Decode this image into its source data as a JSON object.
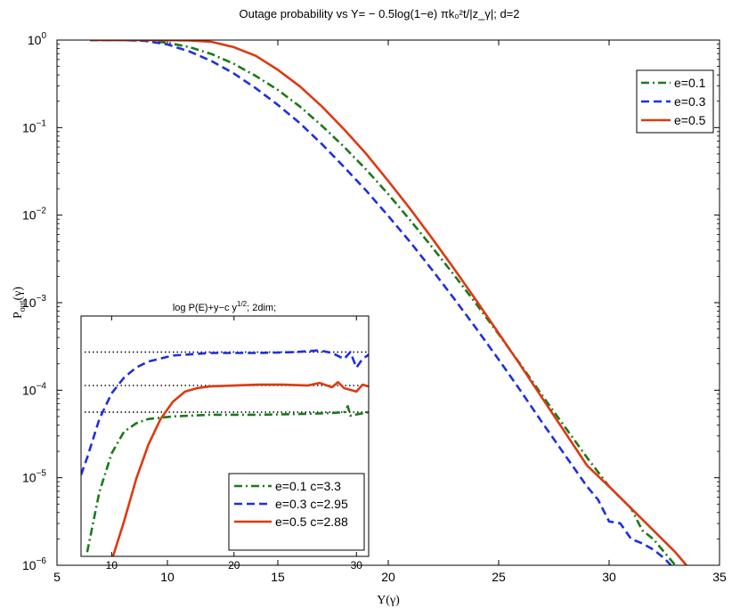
{
  "chart_data": [
    {
      "type": "line",
      "title": "Outage probability vs Y= − 0.5log(1−e) πk₀²t/|z_γ|; d=2",
      "xlabel": "Y(γ)",
      "ylabel": "P_out(γ)",
      "xlim": [
        5,
        35
      ],
      "ylim_log10": [
        -6,
        0
      ],
      "yscale": "log",
      "grid": false,
      "legend_position": "top-right",
      "x_ticks": [
        "5",
        "10",
        "15",
        "20",
        "25",
        "30",
        "35"
      ],
      "y_ticks": [
        {
          "base": "10",
          "exp": "0"
        },
        {
          "base": "10",
          "exp": "−1"
        },
        {
          "base": "10",
          "exp": "−2"
        },
        {
          "base": "10",
          "exp": "−3"
        },
        {
          "base": "10",
          "exp": "−4"
        },
        {
          "base": "10",
          "exp": "−5"
        },
        {
          "base": "10",
          "exp": "−6"
        }
      ],
      "series": [
        {
          "name": "e=0.1",
          "color": "#1a7a1a",
          "style": "dashdot",
          "points": [
            [
              6.5,
              0
            ],
            [
              8,
              0
            ],
            [
              9,
              -0.005
            ],
            [
              10,
              -0.03
            ],
            [
              11,
              -0.08
            ],
            [
              12,
              -0.16
            ],
            [
              13,
              -0.27
            ],
            [
              14,
              -0.41
            ],
            [
              15,
              -0.57
            ],
            [
              16,
              -0.76
            ],
            [
              17,
              -0.98
            ],
            [
              18,
              -1.22
            ],
            [
              19,
              -1.48
            ],
            [
              20,
              -1.76
            ],
            [
              21,
              -2.06
            ],
            [
              22,
              -2.37
            ],
            [
              23,
              -2.69
            ],
            [
              24,
              -3.02
            ],
            [
              25,
              -3.36
            ],
            [
              26,
              -3.71
            ],
            [
              27,
              -4.07
            ],
            [
              28,
              -4.42
            ],
            [
              29,
              -4.77
            ],
            [
              30,
              -5.1
            ],
            [
              31,
              -5.35
            ],
            [
              31.5,
              -5.6
            ],
            [
              32,
              -5.7
            ],
            [
              32.5,
              -5.85
            ],
            [
              33,
              -6.0
            ]
          ]
        },
        {
          "name": "e=0.3",
          "color": "#1f2fe0",
          "style": "dashed",
          "points": [
            [
              6.5,
              0
            ],
            [
              8,
              0
            ],
            [
              9,
              -0.01
            ],
            [
              10,
              -0.05
            ],
            [
              11,
              -0.13
            ],
            [
              12,
              -0.24
            ],
            [
              13,
              -0.38
            ],
            [
              14,
              -0.55
            ],
            [
              15,
              -0.74
            ],
            [
              16,
              -0.95
            ],
            [
              17,
              -1.19
            ],
            [
              18,
              -1.45
            ],
            [
              19,
              -1.72
            ],
            [
              20,
              -2.01
            ],
            [
              21,
              -2.31
            ],
            [
              22,
              -2.63
            ],
            [
              23,
              -2.96
            ],
            [
              24,
              -3.3
            ],
            [
              25,
              -3.65
            ],
            [
              26,
              -4.01
            ],
            [
              27,
              -4.38
            ],
            [
              28,
              -4.74
            ],
            [
              29,
              -5.1
            ],
            [
              29.5,
              -5.25
            ],
            [
              30,
              -5.5
            ],
            [
              30.5,
              -5.52
            ],
            [
              31,
              -5.7
            ],
            [
              31.5,
              -5.75
            ],
            [
              32,
              -5.82
            ],
            [
              32.5,
              -5.92
            ],
            [
              32.8,
              -6.0
            ]
          ]
        },
        {
          "name": "e=0.5",
          "color": "#dc3a10",
          "style": "solid",
          "points": [
            [
              6.5,
              0
            ],
            [
              9,
              0
            ],
            [
              11,
              -0.005
            ],
            [
              12,
              -0.02
            ],
            [
              13,
              -0.08
            ],
            [
              14,
              -0.18
            ],
            [
              15,
              -0.34
            ],
            [
              16,
              -0.53
            ],
            [
              17,
              -0.76
            ],
            [
              18,
              -1.02
            ],
            [
              19,
              -1.3
            ],
            [
              20,
              -1.61
            ],
            [
              21,
              -1.93
            ],
            [
              22,
              -2.27
            ],
            [
              23,
              -2.62
            ],
            [
              24,
              -2.98
            ],
            [
              25,
              -3.35
            ],
            [
              26,
              -3.72
            ],
            [
              27,
              -4.1
            ],
            [
              28,
              -4.48
            ],
            [
              29,
              -4.86
            ],
            [
              30,
              -5.1
            ],
            [
              31,
              -5.35
            ],
            [
              32,
              -5.6
            ],
            [
              33,
              -5.85
            ],
            [
              33.5,
              -6.0
            ]
          ]
        }
      ]
    },
    {
      "type": "line",
      "title": "log P(E)+y−c y^1/2; 2dim;",
      "xlim": [
        7.5,
        31
      ],
      "ylim_log10": [
        -5.9,
        -3.1
      ],
      "yscale": "log",
      "x_ticks": [
        "10",
        "20",
        "30"
      ],
      "legend_position": "bottom-right",
      "reference_levels_log10": [
        -3.52,
        -3.91,
        -4.22
      ],
      "series": [
        {
          "name": "e=0.1 c=3.3",
          "color": "#1a7a1a",
          "style": "dashdot",
          "points": [
            [
              8,
              -5.85
            ],
            [
              9,
              -5.15
            ],
            [
              10,
              -4.7
            ],
            [
              11,
              -4.45
            ],
            [
              12,
              -4.35
            ],
            [
              13,
              -4.3
            ],
            [
              15,
              -4.27
            ],
            [
              18,
              -4.25
            ],
            [
              22,
              -4.25
            ],
            [
              26,
              -4.24
            ],
            [
              28,
              -4.23
            ],
            [
              29,
              -4.22
            ],
            [
              29.3,
              -4.15
            ],
            [
              29.5,
              -4.26
            ],
            [
              31,
              -4.22
            ]
          ]
        },
        {
          "name": "e=0.3 c=2.95",
          "color": "#1f2fe0",
          "style": "dashed",
          "points": [
            [
              7.5,
              -4.95
            ],
            [
              8,
              -4.75
            ],
            [
              9,
              -4.3
            ],
            [
              10,
              -4.0
            ],
            [
              11,
              -3.82
            ],
            [
              12,
              -3.7
            ],
            [
              13,
              -3.63
            ],
            [
              15,
              -3.56
            ],
            [
              18,
              -3.53
            ],
            [
              22,
              -3.53
            ],
            [
              25,
              -3.52
            ],
            [
              27,
              -3.5
            ],
            [
              28,
              -3.53
            ],
            [
              29,
              -3.6
            ],
            [
              29.5,
              -3.52
            ],
            [
              30,
              -3.7
            ],
            [
              30.5,
              -3.6
            ],
            [
              31,
              -3.55
            ]
          ]
        },
        {
          "name": "e=0.5 c=2.88",
          "color": "#dc3a10",
          "style": "solid",
          "points": [
            [
              10,
              -5.95
            ],
            [
              11,
              -5.5
            ],
            [
              12,
              -5.0
            ],
            [
              13,
              -4.6
            ],
            [
              14,
              -4.3
            ],
            [
              15,
              -4.1
            ],
            [
              16,
              -3.98
            ],
            [
              17,
              -3.94
            ],
            [
              18,
              -3.92
            ],
            [
              20,
              -3.91
            ],
            [
              22,
              -3.9
            ],
            [
              24,
              -3.9
            ],
            [
              26,
              -3.91
            ],
            [
              27,
              -3.88
            ],
            [
              28,
              -3.93
            ],
            [
              28.5,
              -3.87
            ],
            [
              29,
              -3.94
            ],
            [
              30,
              -3.98
            ],
            [
              30.5,
              -3.9
            ],
            [
              31,
              -3.92
            ]
          ]
        }
      ]
    }
  ]
}
